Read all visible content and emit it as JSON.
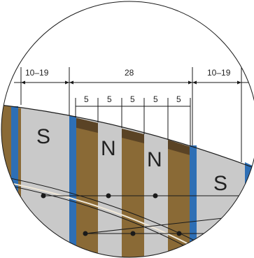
{
  "dimensions": {
    "left": "10–19",
    "middle": "28",
    "right": "10–19",
    "sub": [
      "5",
      "5",
      "5",
      "5",
      "5"
    ]
  },
  "poles": [
    "S",
    "N",
    "N",
    "S"
  ],
  "colors": {
    "background": "#ffffff",
    "disk_fill": "#c9c9c9",
    "brown": "#8a6a36",
    "dark_brown": "#5a4325",
    "blue": "#2e6fb5",
    "line": "#1a1a1a"
  }
}
